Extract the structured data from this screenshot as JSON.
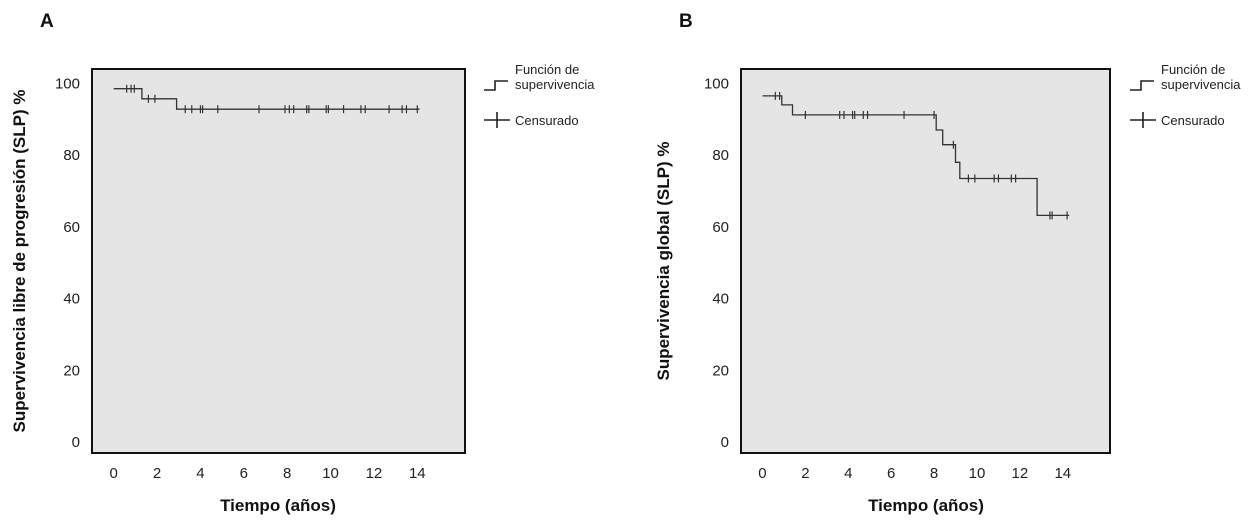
{
  "chart_data": [
    {
      "panel": "A",
      "type": "line",
      "xlabel": "Tiempo (años)",
      "ylabel": "Supervivencia libre de progresión (SLP) %",
      "xlim": [
        -1,
        16.2
      ],
      "ylim": [
        -3,
        104
      ],
      "xticks": [
        0,
        2,
        4,
        6,
        8,
        10,
        12,
        14
      ],
      "yticks": [
        0,
        20,
        40,
        60,
        80,
        100
      ],
      "grid": false,
      "background": "#e5e5e5",
      "legend": {
        "placement": "right",
        "entries": [
          {
            "kind": "step",
            "label_lines": [
              "Función de",
              "supervivencia"
            ]
          },
          {
            "kind": "cross",
            "label_lines": [
              "Censurado"
            ]
          }
        ]
      },
      "steps": [
        [
          0,
          98.5
        ],
        [
          1.3,
          98.5
        ],
        [
          1.3,
          95.7
        ],
        [
          2.9,
          95.7
        ],
        [
          2.9,
          92.8
        ],
        [
          14.1,
          92.8
        ]
      ],
      "censored": [
        [
          0.6,
          98.5
        ],
        [
          0.8,
          98.5
        ],
        [
          0.95,
          98.5
        ],
        [
          1.6,
          95.7
        ],
        [
          1.9,
          95.7
        ],
        [
          3.3,
          92.8
        ],
        [
          3.6,
          92.8
        ],
        [
          4.0,
          92.8
        ],
        [
          4.1,
          92.8
        ],
        [
          4.8,
          92.8
        ],
        [
          6.7,
          92.8
        ],
        [
          7.9,
          92.8
        ],
        [
          8.1,
          92.8
        ],
        [
          8.3,
          92.8
        ],
        [
          8.9,
          92.8
        ],
        [
          9.0,
          92.8
        ],
        [
          9.8,
          92.8
        ],
        [
          9.9,
          92.8
        ],
        [
          10.6,
          92.8
        ],
        [
          11.4,
          92.8
        ],
        [
          11.6,
          92.8
        ],
        [
          12.7,
          92.8
        ],
        [
          13.3,
          92.8
        ],
        [
          13.5,
          92.8
        ],
        [
          14.0,
          92.8
        ]
      ]
    },
    {
      "panel": "B",
      "type": "line",
      "xlabel": "Tiempo (años)",
      "ylabel": "Supervivencia global (SLP) %",
      "xlim": [
        -1,
        16.2
      ],
      "ylim": [
        -3,
        104
      ],
      "xticks": [
        0,
        2,
        4,
        6,
        8,
        10,
        12,
        14
      ],
      "yticks": [
        0,
        20,
        40,
        60,
        80,
        100
      ],
      "grid": false,
      "background": "#e5e5e5",
      "legend": {
        "placement": "right",
        "entries": [
          {
            "kind": "step",
            "label_lines": [
              "Función de",
              "supervivencia"
            ]
          },
          {
            "kind": "cross",
            "label_lines": [
              "Censurado"
            ]
          }
        ]
      },
      "steps": [
        [
          0,
          96.5
        ],
        [
          0.9,
          96.5
        ],
        [
          0.9,
          94
        ],
        [
          1.4,
          94
        ],
        [
          1.4,
          91.2
        ],
        [
          8.1,
          91.2
        ],
        [
          8.1,
          87
        ],
        [
          8.4,
          87
        ],
        [
          8.4,
          82.9
        ],
        [
          9.0,
          82.9
        ],
        [
          9.0,
          78
        ],
        [
          9.2,
          78
        ],
        [
          9.2,
          73.5
        ],
        [
          12.8,
          73.5
        ],
        [
          12.8,
          63.2
        ],
        [
          14.3,
          63.2
        ]
      ],
      "censored": [
        [
          0.6,
          96.5
        ],
        [
          0.8,
          96.5
        ],
        [
          2.0,
          91.2
        ],
        [
          3.6,
          91.2
        ],
        [
          3.8,
          91.2
        ],
        [
          4.2,
          91.2
        ],
        [
          4.3,
          91.2
        ],
        [
          4.7,
          91.2
        ],
        [
          4.9,
          91.2
        ],
        [
          6.6,
          91.2
        ],
        [
          8.0,
          91.2
        ],
        [
          8.9,
          82.9
        ],
        [
          9.6,
          73.5
        ],
        [
          9.9,
          73.5
        ],
        [
          10.8,
          73.5
        ],
        [
          11.0,
          73.5
        ],
        [
          11.6,
          73.5
        ],
        [
          11.8,
          73.5
        ],
        [
          13.4,
          63.2
        ],
        [
          13.5,
          63.2
        ],
        [
          14.2,
          63.2
        ]
      ]
    }
  ]
}
